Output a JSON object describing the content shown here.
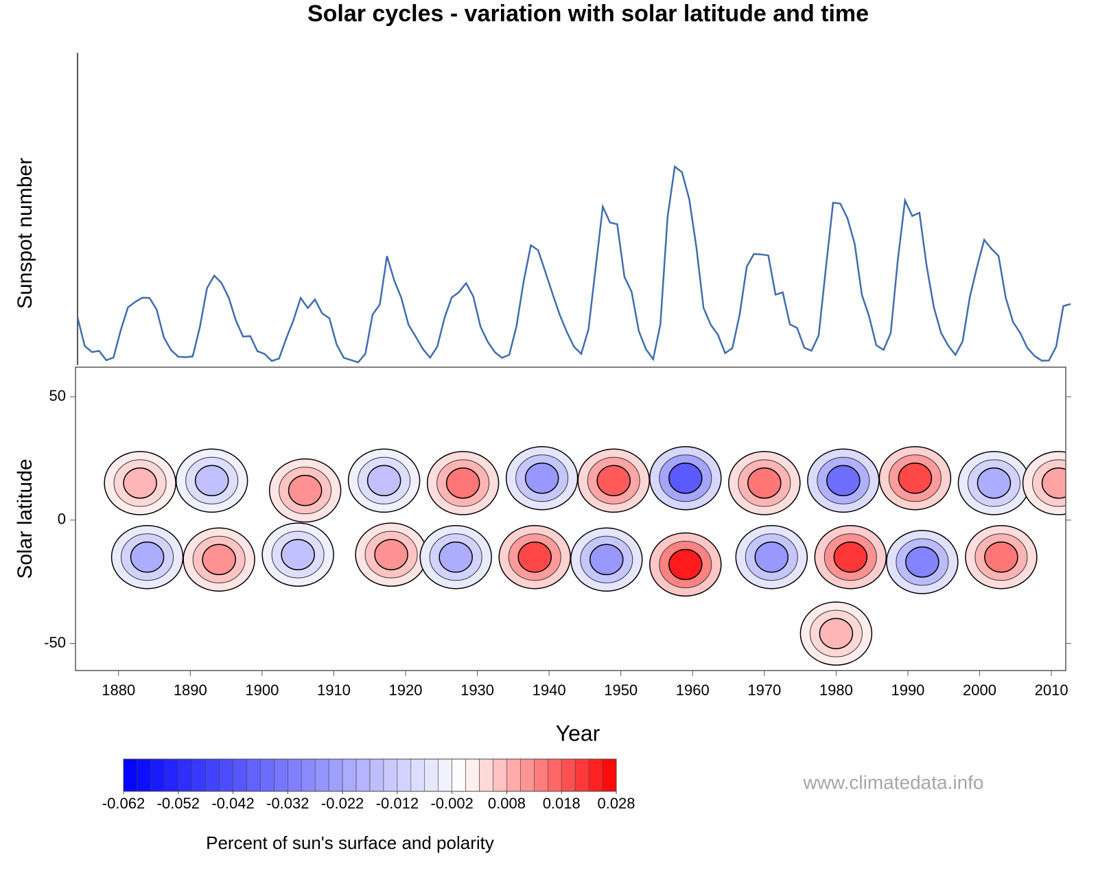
{
  "chart_data": [
    {
      "type": "line",
      "title": "Solar cycles - variation with solar latitude and time",
      "y_label": "Sunspot number",
      "color": "#3f6db0",
      "xlim": [
        1874,
        2012
      ],
      "ylim": [
        0,
        300
      ],
      "x": [
        1874,
        1875,
        1876,
        1877,
        1878,
        1879,
        1880,
        1881,
        1882,
        1883,
        1884,
        1885,
        1886,
        1887,
        1888,
        1889,
        1890,
        1891,
        1892,
        1893,
        1894,
        1895,
        1896,
        1897,
        1898,
        1899,
        1900,
        1901,
        1902,
        1903,
        1904,
        1905,
        1906,
        1907,
        1908,
        1909,
        1910,
        1911,
        1912,
        1913,
        1914,
        1915,
        1916,
        1917,
        1918,
        1919,
        1920,
        1921,
        1922,
        1923,
        1924,
        1925,
        1926,
        1927,
        1928,
        1929,
        1930,
        1931,
        1932,
        1933,
        1934,
        1935,
        1936,
        1937,
        1938,
        1939,
        1940,
        1941,
        1942,
        1943,
        1944,
        1945,
        1946,
        1947,
        1948,
        1949,
        1950,
        1951,
        1952,
        1953,
        1954,
        1955,
        1956,
        1957,
        1958,
        1959,
        1960,
        1961,
        1962,
        1963,
        1964,
        1965,
        1966,
        1967,
        1968,
        1969,
        1970,
        1971,
        1972,
        1973,
        1974,
        1975,
        1976,
        1977,
        1978,
        1979,
        1980,
        1981,
        1982,
        1983,
        1984,
        1985,
        1986,
        1987,
        1988,
        1989,
        1990,
        1991,
        1992,
        1993,
        1994,
        1995,
        1996,
        1997,
        1998,
        1999,
        2000,
        2001,
        2002,
        2003,
        2004,
        2005,
        2006,
        2007,
        2008,
        2009,
        2010,
        2011,
        2012
      ],
      "values": [
        44.7,
        17.1,
        11.3,
        12.3,
        3.4,
        6.0,
        32.3,
        54.3,
        59.7,
        63.7,
        63.5,
        52.2,
        25.4,
        13.1,
        6.8,
        6.3,
        7.1,
        35.6,
        73.0,
        85.1,
        78.0,
        64.0,
        41.8,
        26.2,
        26.7,
        12.1,
        9.5,
        2.7,
        5.0,
        24.4,
        42.0,
        63.5,
        53.8,
        62.0,
        48.5,
        43.9,
        18.6,
        5.7,
        3.6,
        1.4,
        9.6,
        47.4,
        57.1,
        103.9,
        80.6,
        63.6,
        37.6,
        26.1,
        14.2,
        5.8,
        16.7,
        44.3,
        63.9,
        69.0,
        77.8,
        64.9,
        35.7,
        21.2,
        11.1,
        5.7,
        8.7,
        36.1,
        79.7,
        114.4,
        109.6,
        88.8,
        67.8,
        47.5,
        30.6,
        16.3,
        9.6,
        33.2,
        92.6,
        151.6,
        136.3,
        134.7,
        83.9,
        69.4,
        31.5,
        13.9,
        4.4,
        38.0,
        141.7,
        190.2,
        184.8,
        159.0,
        112.3,
        53.9,
        37.6,
        27.9,
        10.2,
        15.1,
        47.0,
        93.8,
        105.9,
        105.5,
        104.5,
        66.6,
        68.9,
        38.0,
        34.5,
        15.5,
        12.6,
        27.5,
        92.5,
        155.4,
        154.6,
        140.4,
        115.9,
        66.6,
        45.9,
        17.9,
        13.4,
        29.4,
        100.2,
        157.6,
        142.6,
        145.7,
        94.3,
        54.6,
        29.9,
        17.5,
        8.6,
        21.5,
        64.3,
        93.3,
        119.6,
        111.0,
        104.0,
        63.7,
        40.4,
        29.8,
        15.2,
        7.5,
        2.9,
        3.1,
        16.5,
        55.7,
        57.6
      ]
    },
    {
      "type": "contour",
      "x_label": "Year",
      "y_label": "Solar latitude",
      "xlim": [
        1874,
        2012
      ],
      "ylim": [
        -61,
        62
      ],
      "xticks": [
        1880,
        1890,
        1900,
        1910,
        1920,
        1930,
        1940,
        1950,
        1960,
        1970,
        1980,
        1990,
        2000,
        2010
      ],
      "yticks": [
        -50,
        0,
        50
      ],
      "blobs": [
        {
          "x": 1883,
          "y": 15,
          "value": 0.008
        },
        {
          "x": 1893,
          "y": 16,
          "value": -0.015
        },
        {
          "x": 1906,
          "y": 12,
          "value": 0.012
        },
        {
          "x": 1917,
          "y": 16,
          "value": -0.015
        },
        {
          "x": 1928,
          "y": 15,
          "value": 0.015
        },
        {
          "x": 1939,
          "y": 17,
          "value": -0.025
        },
        {
          "x": 1949,
          "y": 16,
          "value": 0.018
        },
        {
          "x": 1959,
          "y": 17,
          "value": -0.04
        },
        {
          "x": 1970,
          "y": 15,
          "value": 0.015
        },
        {
          "x": 1981,
          "y": 16,
          "value": -0.035
        },
        {
          "x": 1991,
          "y": 17,
          "value": 0.02
        },
        {
          "x": 2002,
          "y": 15,
          "value": -0.02
        },
        {
          "x": 2011,
          "y": 15,
          "value": 0.01
        },
        {
          "x": 1884,
          "y": -15,
          "value": -0.02
        },
        {
          "x": 1894,
          "y": -16,
          "value": 0.012
        },
        {
          "x": 1905,
          "y": -14,
          "value": -0.015
        },
        {
          "x": 1918,
          "y": -14,
          "value": 0.012
        },
        {
          "x": 1927,
          "y": -15,
          "value": -0.02
        },
        {
          "x": 1938,
          "y": -15,
          "value": 0.02
        },
        {
          "x": 1948,
          "y": -16,
          "value": -0.025
        },
        {
          "x": 1959,
          "y": -18,
          "value": 0.025
        },
        {
          "x": 1971,
          "y": -15,
          "value": -0.025
        },
        {
          "x": 1982,
          "y": -15,
          "value": 0.022
        },
        {
          "x": 1992,
          "y": -17,
          "value": -0.03
        },
        {
          "x": 2003,
          "y": -15,
          "value": 0.015
        },
        {
          "x": 1980,
          "y": -46,
          "value": 0.008
        }
      ],
      "colorbar": {
        "label": "Percent of sun's surface and polarity",
        "lim": [
          -0.062,
          0.028
        ],
        "step": 0.0025,
        "ticks": [
          -0.062,
          -0.052,
          -0.042,
          -0.032,
          -0.022,
          -0.012,
          -0.002,
          0.008,
          0.018,
          0.028
        ],
        "colors": {
          "negative": "#0000ff",
          "zero": "#ffffff",
          "positive": "#ff0000"
        }
      },
      "annotation": "www.climatedata.info"
    }
  ]
}
